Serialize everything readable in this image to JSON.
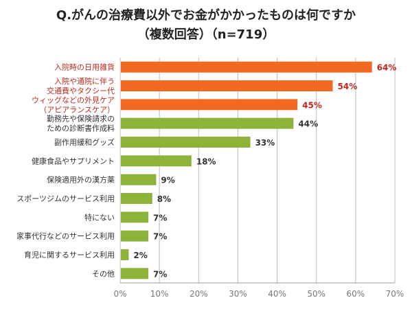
{
  "chart_data": {
    "type": "bar",
    "orientation": "horizontal",
    "title_line1": "Q.がんの治療費以外でお金がかかったものは何ですか",
    "title_line2": "（複数回答）（n=719）",
    "categories": [
      [
        "入院時の日用雑貨"
      ],
      [
        "入院や通院に伴う",
        "交通費やタクシー代"
      ],
      [
        "ウィッグなどの外見ケア",
        "（アピアランスケア）"
      ],
      [
        "勤務先や保険請求の",
        "ための診断書作成料"
      ],
      [
        "副作用緩和グッズ"
      ],
      [
        "健康食品やサプリメント"
      ],
      [
        "保険適用外の漢方薬"
      ],
      [
        "スポーツジムのサービス利用"
      ],
      [
        "特にない"
      ],
      [
        "家事代行などのサービス利用"
      ],
      [
        "育児に関するサービス利用"
      ],
      [
        "その他"
      ]
    ],
    "values": [
      64,
      54,
      45,
      44,
      33,
      18,
      9,
      8,
      7,
      7,
      2,
      7
    ],
    "highlighted": [
      true,
      true,
      true,
      false,
      false,
      false,
      false,
      false,
      false,
      false,
      false,
      false
    ],
    "value_suffix": "%",
    "xlim": [
      0,
      70
    ],
    "xticks": [
      0,
      10,
      20,
      30,
      40,
      50,
      60,
      70
    ],
    "xtick_labels": [
      "0%",
      "10%",
      "20%",
      "30%",
      "40%",
      "50%",
      "60%",
      "70%"
    ],
    "grid": true,
    "colors": {
      "highlight": "#f26a21",
      "normal": "#8db33a",
      "highlight_label": "#c0281e",
      "normal_label": "#333333",
      "grid": "#bbbbbb"
    }
  }
}
